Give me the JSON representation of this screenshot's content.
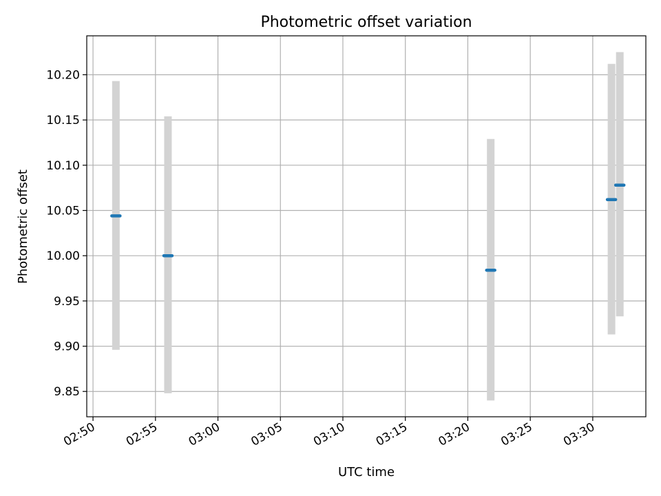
{
  "chart_data": {
    "type": "scatter",
    "title": "Photometric offset variation",
    "xlabel": "UTC time",
    "ylabel": "Photometric offset",
    "x_axis": {
      "kind": "time",
      "range": [
        "02:49:30",
        "03:34:15"
      ],
      "ticks": [
        "02:50",
        "02:55",
        "03:00",
        "03:05",
        "03:10",
        "03:15",
        "03:20",
        "03:25",
        "03:30"
      ]
    },
    "y_axis": {
      "range": [
        9.822,
        10.243
      ],
      "ticks": [
        "9.85",
        "9.90",
        "9.95",
        "10.00",
        "10.05",
        "10.10",
        "10.15",
        "10.20"
      ]
    },
    "grid": true,
    "colors": {
      "point": "#1f77b4",
      "errorbar": "#d3d3d3",
      "grid": "#b0b0b0"
    },
    "points": [
      {
        "time": "02:51:50",
        "y": 10.044,
        "y_low": 9.896,
        "y_high": 10.193
      },
      {
        "time": "02:56:00",
        "y": 10.0,
        "y_low": 9.848,
        "y_high": 10.154
      },
      {
        "time": "03:21:50",
        "y": 9.984,
        "y_low": 9.84,
        "y_high": 10.129
      },
      {
        "time": "03:31:30",
        "y": 10.062,
        "y_low": 9.913,
        "y_high": 10.212
      },
      {
        "time": "03:32:10",
        "y": 10.078,
        "y_low": 9.933,
        "y_high": 10.225
      }
    ]
  }
}
